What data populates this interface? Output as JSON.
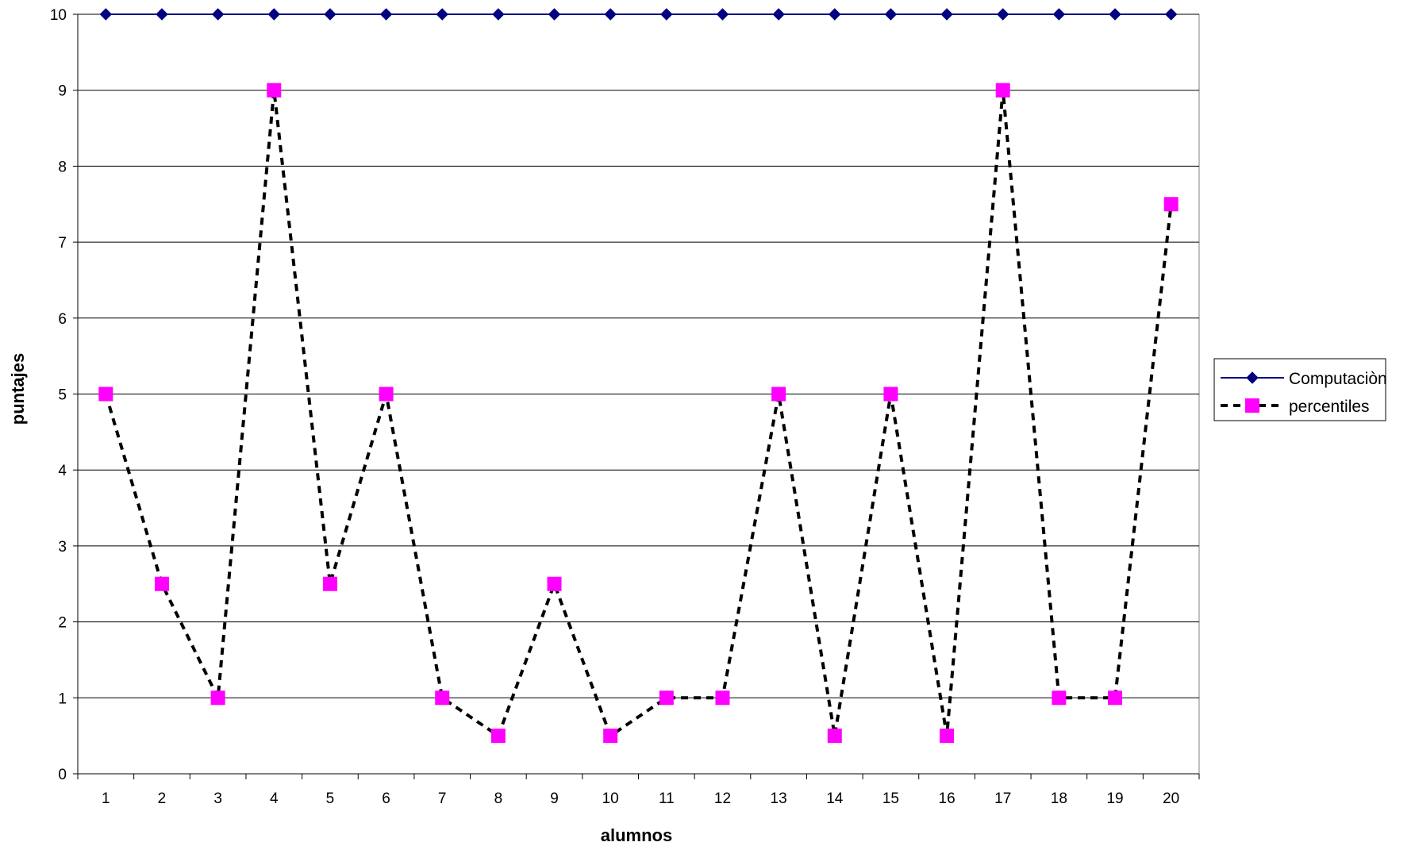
{
  "chart_data": {
    "type": "line",
    "title": "",
    "xlabel": "alumnos",
    "ylabel": "puntajes",
    "categories": [
      "1",
      "2",
      "3",
      "4",
      "5",
      "6",
      "7",
      "8",
      "9",
      "10",
      "11",
      "12",
      "13",
      "14",
      "15",
      "16",
      "17",
      "18",
      "19",
      "20"
    ],
    "ylim": [
      0,
      10
    ],
    "yticks": [
      0,
      1,
      2,
      3,
      4,
      5,
      6,
      7,
      8,
      9,
      10
    ],
    "grid": true,
    "legend_position": "right",
    "series": [
      {
        "name": "Computaciòn",
        "values": [
          10,
          10,
          10,
          10,
          10,
          10,
          10,
          10,
          10,
          10,
          10,
          10,
          10,
          10,
          10,
          10,
          10,
          10,
          10,
          10
        ],
        "color": "#000080",
        "line_style": "solid",
        "marker": "diamond"
      },
      {
        "name": "percentiles",
        "values": [
          5,
          2.5,
          1,
          9,
          2.5,
          5,
          1,
          0.5,
          2.5,
          0.5,
          1,
          1,
          5,
          0.5,
          5,
          0.5,
          9,
          1,
          1,
          7.5
        ],
        "color": "#000000",
        "marker_color": "#ff00ff",
        "line_style": "dashed",
        "marker": "square"
      }
    ]
  }
}
